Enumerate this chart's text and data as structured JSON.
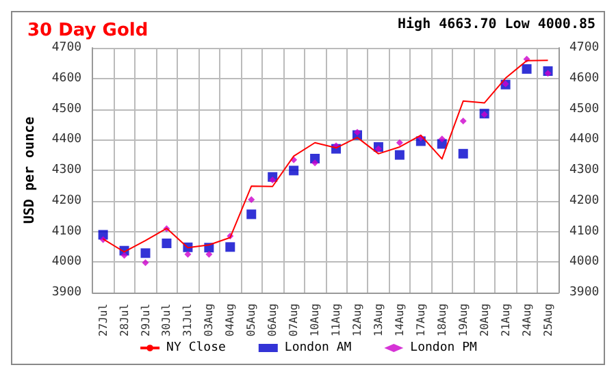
{
  "chart_data": {
    "type": "line",
    "title": "30 Day Gold",
    "ylabel": "USD per ounce",
    "annotations": [
      "High 4663.70 Low 4000.85"
    ],
    "categories": [
      "27Jul",
      "28Jul",
      "29Jul",
      "30Jul",
      "31Jul",
      "03Aug",
      "04Aug",
      "05Aug",
      "06Aug",
      "07Aug",
      "10Aug",
      "11Aug",
      "12Aug",
      "13Aug",
      "14Aug",
      "17Aug",
      "18Aug",
      "19Aug",
      "20Aug",
      "21Aug",
      "24Aug",
      "25Aug"
    ],
    "series": [
      {
        "name": "NY Close",
        "type": "line",
        "color": "#ff0000",
        "marker": "none",
        "values": [
          4075,
          4033,
          4070,
          4110,
          4047,
          4056,
          4080,
          4248,
          4247,
          4346,
          4390,
          4373,
          4407,
          4354,
          4376,
          4414,
          4337,
          4526,
          4520,
          4601,
          4658,
          4659
        ]
      },
      {
        "name": "London AM",
        "type": "scatter",
        "color": "#0000cc",
        "marker": "square",
        "values": [
          4089,
          4037,
          4029,
          4061,
          4048,
          4047,
          4049,
          4156,
          4278,
          4299,
          4338,
          4370,
          4415,
          4376,
          4350,
          4395,
          4386,
          4354,
          4485,
          4580,
          4631,
          4624
        ]
      },
      {
        "name": "London PM",
        "type": "scatter",
        "color": "#cc00cc",
        "marker": "diamond",
        "values": [
          4073,
          4022,
          3998,
          4109,
          4025,
          4025,
          4085,
          4204,
          4268,
          4334,
          4324,
          4380,
          4424,
          4370,
          4390,
          4406,
          4402,
          4461,
          4482,
          4582,
          4663,
          4617
        ]
      }
    ],
    "ylim": [
      3900,
      4700
    ],
    "yticks": [
      3900,
      4000,
      4100,
      4200,
      4300,
      4400,
      4500,
      4600,
      4700
    ],
    "y2lim": [
      3900,
      4700
    ],
    "y2ticks": [
      3900,
      4000,
      4100,
      4200,
      4300,
      4400,
      4500,
      4600,
      4700
    ],
    "grid": true,
    "legend": "bottom"
  }
}
